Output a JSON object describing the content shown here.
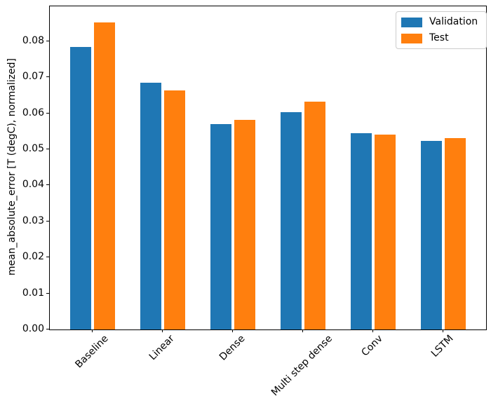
{
  "chart_data": {
    "type": "bar",
    "title": "",
    "xlabel": "",
    "ylabel": "mean_absolute_error [T (degC), normalized]",
    "categories": [
      "Baseline",
      "Linear",
      "Dense",
      "Multi step dense",
      "Conv",
      "LSTM"
    ],
    "series": [
      {
        "name": "Validation",
        "color": "#1f77b4",
        "values": [
          0.0785,
          0.0685,
          0.057,
          0.0604,
          0.0544,
          0.0523
        ]
      },
      {
        "name": "Test",
        "color": "#ff7f0e",
        "values": [
          0.0853,
          0.0663,
          0.0581,
          0.0633,
          0.0541,
          0.0532
        ]
      }
    ],
    "ylim": [
      0,
      0.0897
    ],
    "yticks": [
      0.0,
      0.01,
      0.02,
      0.03,
      0.04,
      0.05,
      0.06,
      0.07,
      0.08
    ],
    "ytick_labels": [
      "0.00",
      "0.01",
      "0.02",
      "0.03",
      "0.04",
      "0.05",
      "0.06",
      "0.07",
      "0.08"
    ],
    "xtick_rotation": 45,
    "grid": false,
    "legend_position": "upper right"
  }
}
